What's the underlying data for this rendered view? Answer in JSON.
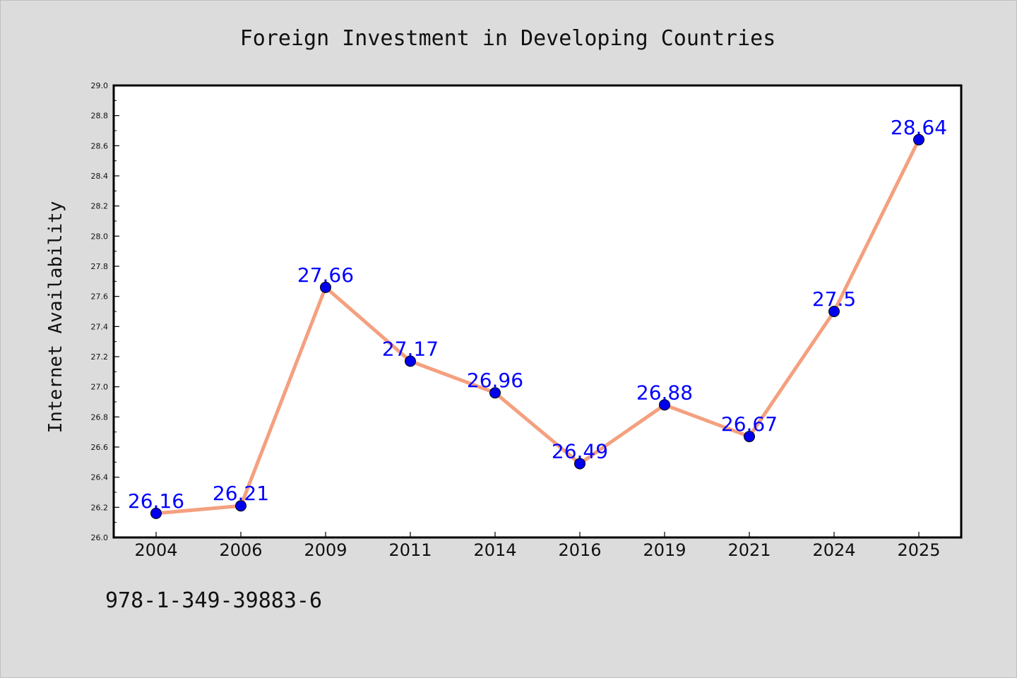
{
  "chart_data": {
    "type": "line",
    "title": "Foreign Investment in Developing Countries",
    "xlabel": "",
    "ylabel": "Internet Availability",
    "categories": [
      "2004",
      "2006",
      "2009",
      "2011",
      "2014",
      "2016",
      "2019",
      "2021",
      "2024",
      "2025"
    ],
    "series": [
      {
        "values": [
          26.16,
          26.21,
          27.66,
          27.17,
          26.96,
          26.49,
          26.88,
          26.67,
          27.5,
          28.64
        ],
        "labels": [
          "26.16",
          "26.21",
          "27.66",
          "27.17",
          "26.96",
          "26.49",
          "26.88",
          "26.67",
          "27.5",
          "28.64"
        ]
      }
    ],
    "ylim": [
      26.0,
      29.0
    ],
    "yticks": [
      "26.0",
      "26.2",
      "26.4",
      "26.6",
      "26.8",
      "27.0",
      "27.2",
      "27.4",
      "27.6",
      "27.8",
      "28.0",
      "28.2",
      "28.4",
      "28.6",
      "28.8",
      "29.0"
    ],
    "grid": false,
    "legend": "none",
    "colors": {
      "line": "#f4a07f",
      "marker": "#0000ee",
      "data_label": "#0000ff",
      "plot_background": "#ffffff",
      "figure_background": "#dcdcdc"
    }
  },
  "footer": {
    "code": "978-1-349-39883-6"
  }
}
